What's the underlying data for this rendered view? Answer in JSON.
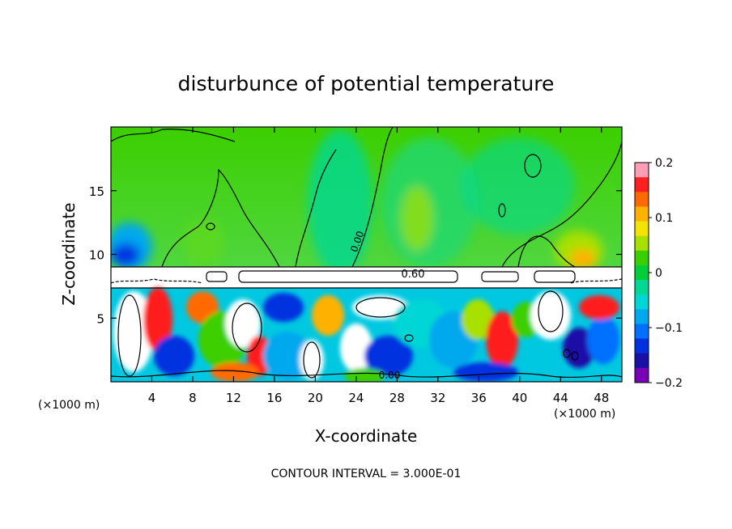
{
  "chart_data": {
    "type": "heatmap",
    "title": "disturbunce of potential temperature",
    "xlabel": "X-coordinate",
    "ylabel": "Z-coordinate",
    "x_unit": "(×1000 m)",
    "x_unit_right": "(×1000 m)",
    "xlim": [
      0,
      50
    ],
    "ylim": [
      0,
      20
    ],
    "x_ticks": [
      4,
      8,
      12,
      16,
      20,
      24,
      28,
      32,
      36,
      40,
      44,
      48
    ],
    "y_ticks": [
      5,
      10,
      15
    ],
    "colorbar": {
      "range": [
        -0.2,
        0.2
      ],
      "tick_labels": [
        "0.2",
        "0.1",
        "0",
        "−0.1",
        "−0.2"
      ],
      "tick_values": [
        0.2,
        0.1,
        0,
        -0.1,
        -0.2
      ],
      "colors": [
        "#ff9db4",
        "#ff1f1f",
        "#ff6a00",
        "#ffb100",
        "#f3e300",
        "#a8e000",
        "#3ccf00",
        "#00cf3a",
        "#00d894",
        "#00d6d6",
        "#00a8ee",
        "#0070ff",
        "#0030e0",
        "#1a10a8",
        "#7a00b8"
      ]
    },
    "contour_labels": [
      "0.60",
      "0.00",
      "0.00"
    ],
    "footer": "CONTOUR INTERVAL = 3.000E-01"
  }
}
